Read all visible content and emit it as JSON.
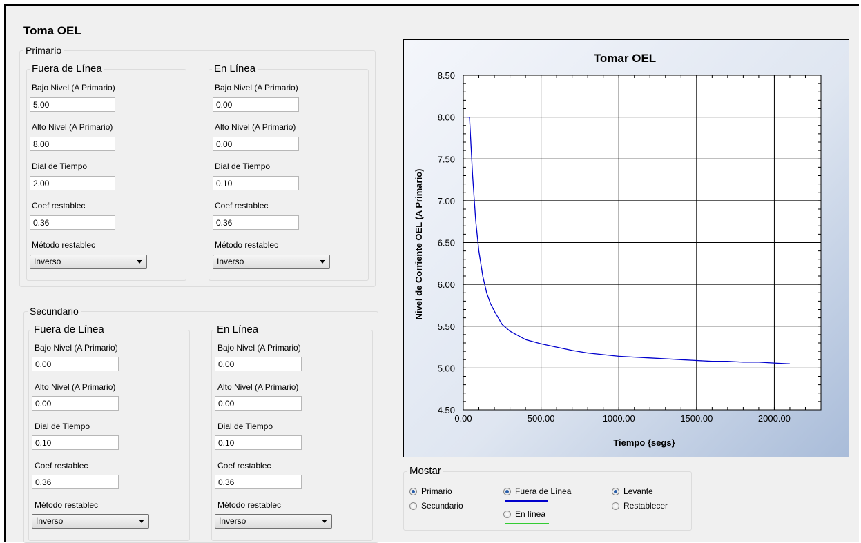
{
  "title": "Toma OEL",
  "primario": {
    "title": "Primario",
    "offline": {
      "title": "Fuera de Línea",
      "bajo_label": "Bajo Nivel (A Primario)",
      "bajo_value": "5.00",
      "alto_label": "Alto Nivel  (A Primario)",
      "alto_value": "8.00",
      "dial_label": "Dial de Tiempo",
      "dial_value": "2.00",
      "coef_label": "Coef restablec",
      "coef_value": "0.36",
      "metodo_label": "Método restablec",
      "metodo_value": "Inverso"
    },
    "online": {
      "title": "En Línea",
      "bajo_label": "Bajo Nivel (A Primario)",
      "bajo_value": "0.00",
      "alto_label": "Alto Nivel  (A Primario)",
      "alto_value": "0.00",
      "dial_label": "Dial de Tiempo",
      "dial_value": "0.10",
      "coef_label": "Coef restablec",
      "coef_value": "0.36",
      "metodo_label": "Método restablec",
      "metodo_value": "Inverso"
    }
  },
  "secundario": {
    "title": "Secundario",
    "offline": {
      "title": "Fuera de Línea",
      "bajo_label": "Bajo Nivel (A Primario)",
      "bajo_value": "0.00",
      "alto_label": "Alto Nivel  (A Primario)",
      "alto_value": "0.00",
      "dial_label": "Dial de Tiempo",
      "dial_value": "0.10",
      "coef_label": "Coef restablec",
      "coef_value": "0.36",
      "metodo_label": "Método restablec",
      "metodo_value": "Inverso"
    },
    "online": {
      "title": "En Línea",
      "bajo_label": "Bajo Nivel (A Primario)",
      "bajo_value": "0.00",
      "alto_label": "Alto Nivel  (A Primario)",
      "alto_value": "0.00",
      "dial_label": "Dial de Tiempo",
      "dial_value": "0.10",
      "coef_label": "Coef restablec",
      "coef_value": "0.36",
      "metodo_label": "Método restablec",
      "metodo_value": "Inverso"
    }
  },
  "mostrar": {
    "title": "Mostar",
    "primario": "Primario",
    "secundario": "Secundario",
    "fuera": "Fuera de Línea",
    "enlinea": "En línea",
    "levante": "Levante",
    "restablecer": "Restablecer",
    "fuera_color": "#0000cc",
    "enlinea_color": "#33cc33"
  },
  "chart_data": {
    "type": "line",
    "title": "Tomar OEL",
    "xlabel": "Tiempo {segs}",
    "ylabel": "Nivel de Corriente OEL (A Primario)",
    "xlim": [
      0,
      2300
    ],
    "ylim": [
      4.5,
      8.5
    ],
    "xticks": [
      "0.00",
      "500.00",
      "1000.00",
      "1500.00",
      "2000.00"
    ],
    "yticks": [
      "4.50",
      "5.00",
      "5.50",
      "6.00",
      "6.50",
      "7.00",
      "7.50",
      "8.00",
      "8.50"
    ],
    "grid": true,
    "series": [
      {
        "color": "#0000cc",
        "x": [
          20,
          40,
          60,
          80,
          100,
          125,
          150,
          175,
          200,
          250,
          300,
          400,
          500,
          600,
          700,
          800,
          900,
          1000,
          1100,
          1200,
          1300,
          1400,
          1500,
          1600,
          1700,
          1800,
          1900,
          2000,
          2100
        ],
        "y": [
          8.0,
          8.0,
          7.3,
          6.76,
          6.4,
          6.1,
          5.9,
          5.77,
          5.68,
          5.52,
          5.44,
          5.34,
          5.29,
          5.25,
          5.21,
          5.18,
          5.16,
          5.14,
          5.13,
          5.12,
          5.11,
          5.1,
          5.09,
          5.08,
          5.08,
          5.07,
          5.07,
          5.06,
          5.05
        ]
      }
    ]
  }
}
